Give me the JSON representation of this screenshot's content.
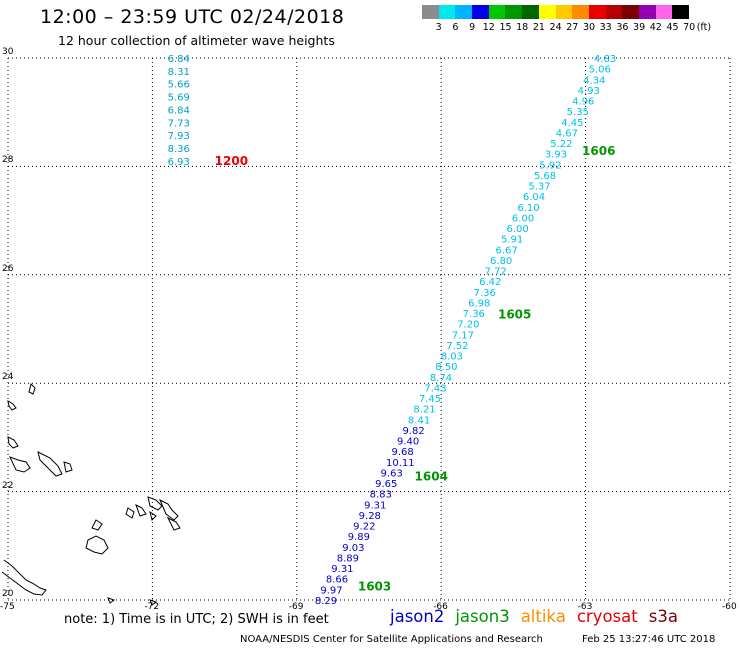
{
  "header": {
    "title": "12:00 – 23:59 UTC 02/24/2018",
    "subtitle": "12 hour collection of altimeter wave heights"
  },
  "colorbar": {
    "colors": [
      "#8c8c8c",
      "#00e8e8",
      "#00b4ff",
      "#0000e8",
      "#00c800",
      "#009600",
      "#006400",
      "#ffff00",
      "#ffc800",
      "#ff8c00",
      "#e80000",
      "#b40000",
      "#7c0000",
      "#9600b4",
      "#ff64e8",
      "#000000"
    ],
    "labels": [
      "3",
      "6",
      "9",
      "12",
      "15",
      "18",
      "21",
      "24",
      "27",
      "30",
      "33",
      "36",
      "39",
      "42",
      "45",
      "70",
      "(ft)"
    ]
  },
  "map": {
    "lon_range": [
      -75,
      -60
    ],
    "lat_range": [
      20,
      30
    ],
    "lon_ticks": [
      "-75",
      "-72",
      "-69",
      "-66",
      "-63",
      "-60"
    ],
    "lat_ticks": [
      "30",
      "28",
      "26",
      "24",
      "22",
      "20"
    ],
    "grid": "dotted",
    "tracks": [
      {
        "satellite": "jason3",
        "color": "#00a0c8",
        "lon": -71.6,
        "lat_top": 30.0,
        "lat_bottom": 28.1,
        "values": [
          "6.84",
          "8.31",
          "5.66",
          "5.69",
          "6.84",
          "7.73",
          "7.93",
          "8.36",
          "6.93"
        ],
        "time_label": "1200",
        "time_color": "#e80000"
      },
      {
        "satellite": "jason3",
        "color_upper": "#00c0e8",
        "color_lower": "#0000c8",
        "lon_top": -62.7,
        "lon_bottom": -68.5,
        "lat_top": 30.0,
        "lat_bottom": 20.0,
        "values": [
          "4.83",
          "5.06",
          "4.34",
          "4.93",
          "4.96",
          "5.35",
          "4.45",
          "4.67",
          "5.22",
          "3.93",
          "5.92",
          "5.68",
          "5.37",
          "6.04",
          "6.10",
          "6.00",
          "6.00",
          "5.91",
          "6.67",
          "6.80",
          "7.72",
          "6.42",
          "7.36",
          "6.98",
          "7.36",
          "7.20",
          "7.17",
          "7.52",
          "8.03",
          "8.50",
          "8.74",
          "7.43",
          "7.45",
          "8.21",
          "8.41",
          "9.82",
          "9.40",
          "9.68",
          "10.11",
          "9.63",
          "9.65",
          "8.83",
          "9.31",
          "9.28",
          "9.22",
          "9.89",
          "9.03",
          "8.89",
          "9.31",
          "8.66",
          "9.97",
          "8.29"
        ],
        "time_labels": [
          {
            "text": "1606",
            "lat": 28.28
          },
          {
            "text": "1605",
            "lat": 25.27
          },
          {
            "text": "1604",
            "lat": 22.28
          },
          {
            "text": "1603",
            "lat": 20.25
          }
        ]
      }
    ]
  },
  "footer": {
    "note": "note:  1) Time is in UTC;  2) SWH is in feet",
    "satellites": [
      {
        "name": "jason2",
        "color": "#0000c8"
      },
      {
        "name": "jason3",
        "color": "#009600"
      },
      {
        "name": "altika",
        "color": "#ff8c00"
      },
      {
        "name": "cryosat",
        "color": "#e80000"
      },
      {
        "name": "s3a",
        "color": "#7c0000"
      }
    ],
    "credit": "NOAA/NESDIS Center for Satellite Applications and Research",
    "timestamp": "Feb 25 13:27:46 UTC 2018"
  }
}
